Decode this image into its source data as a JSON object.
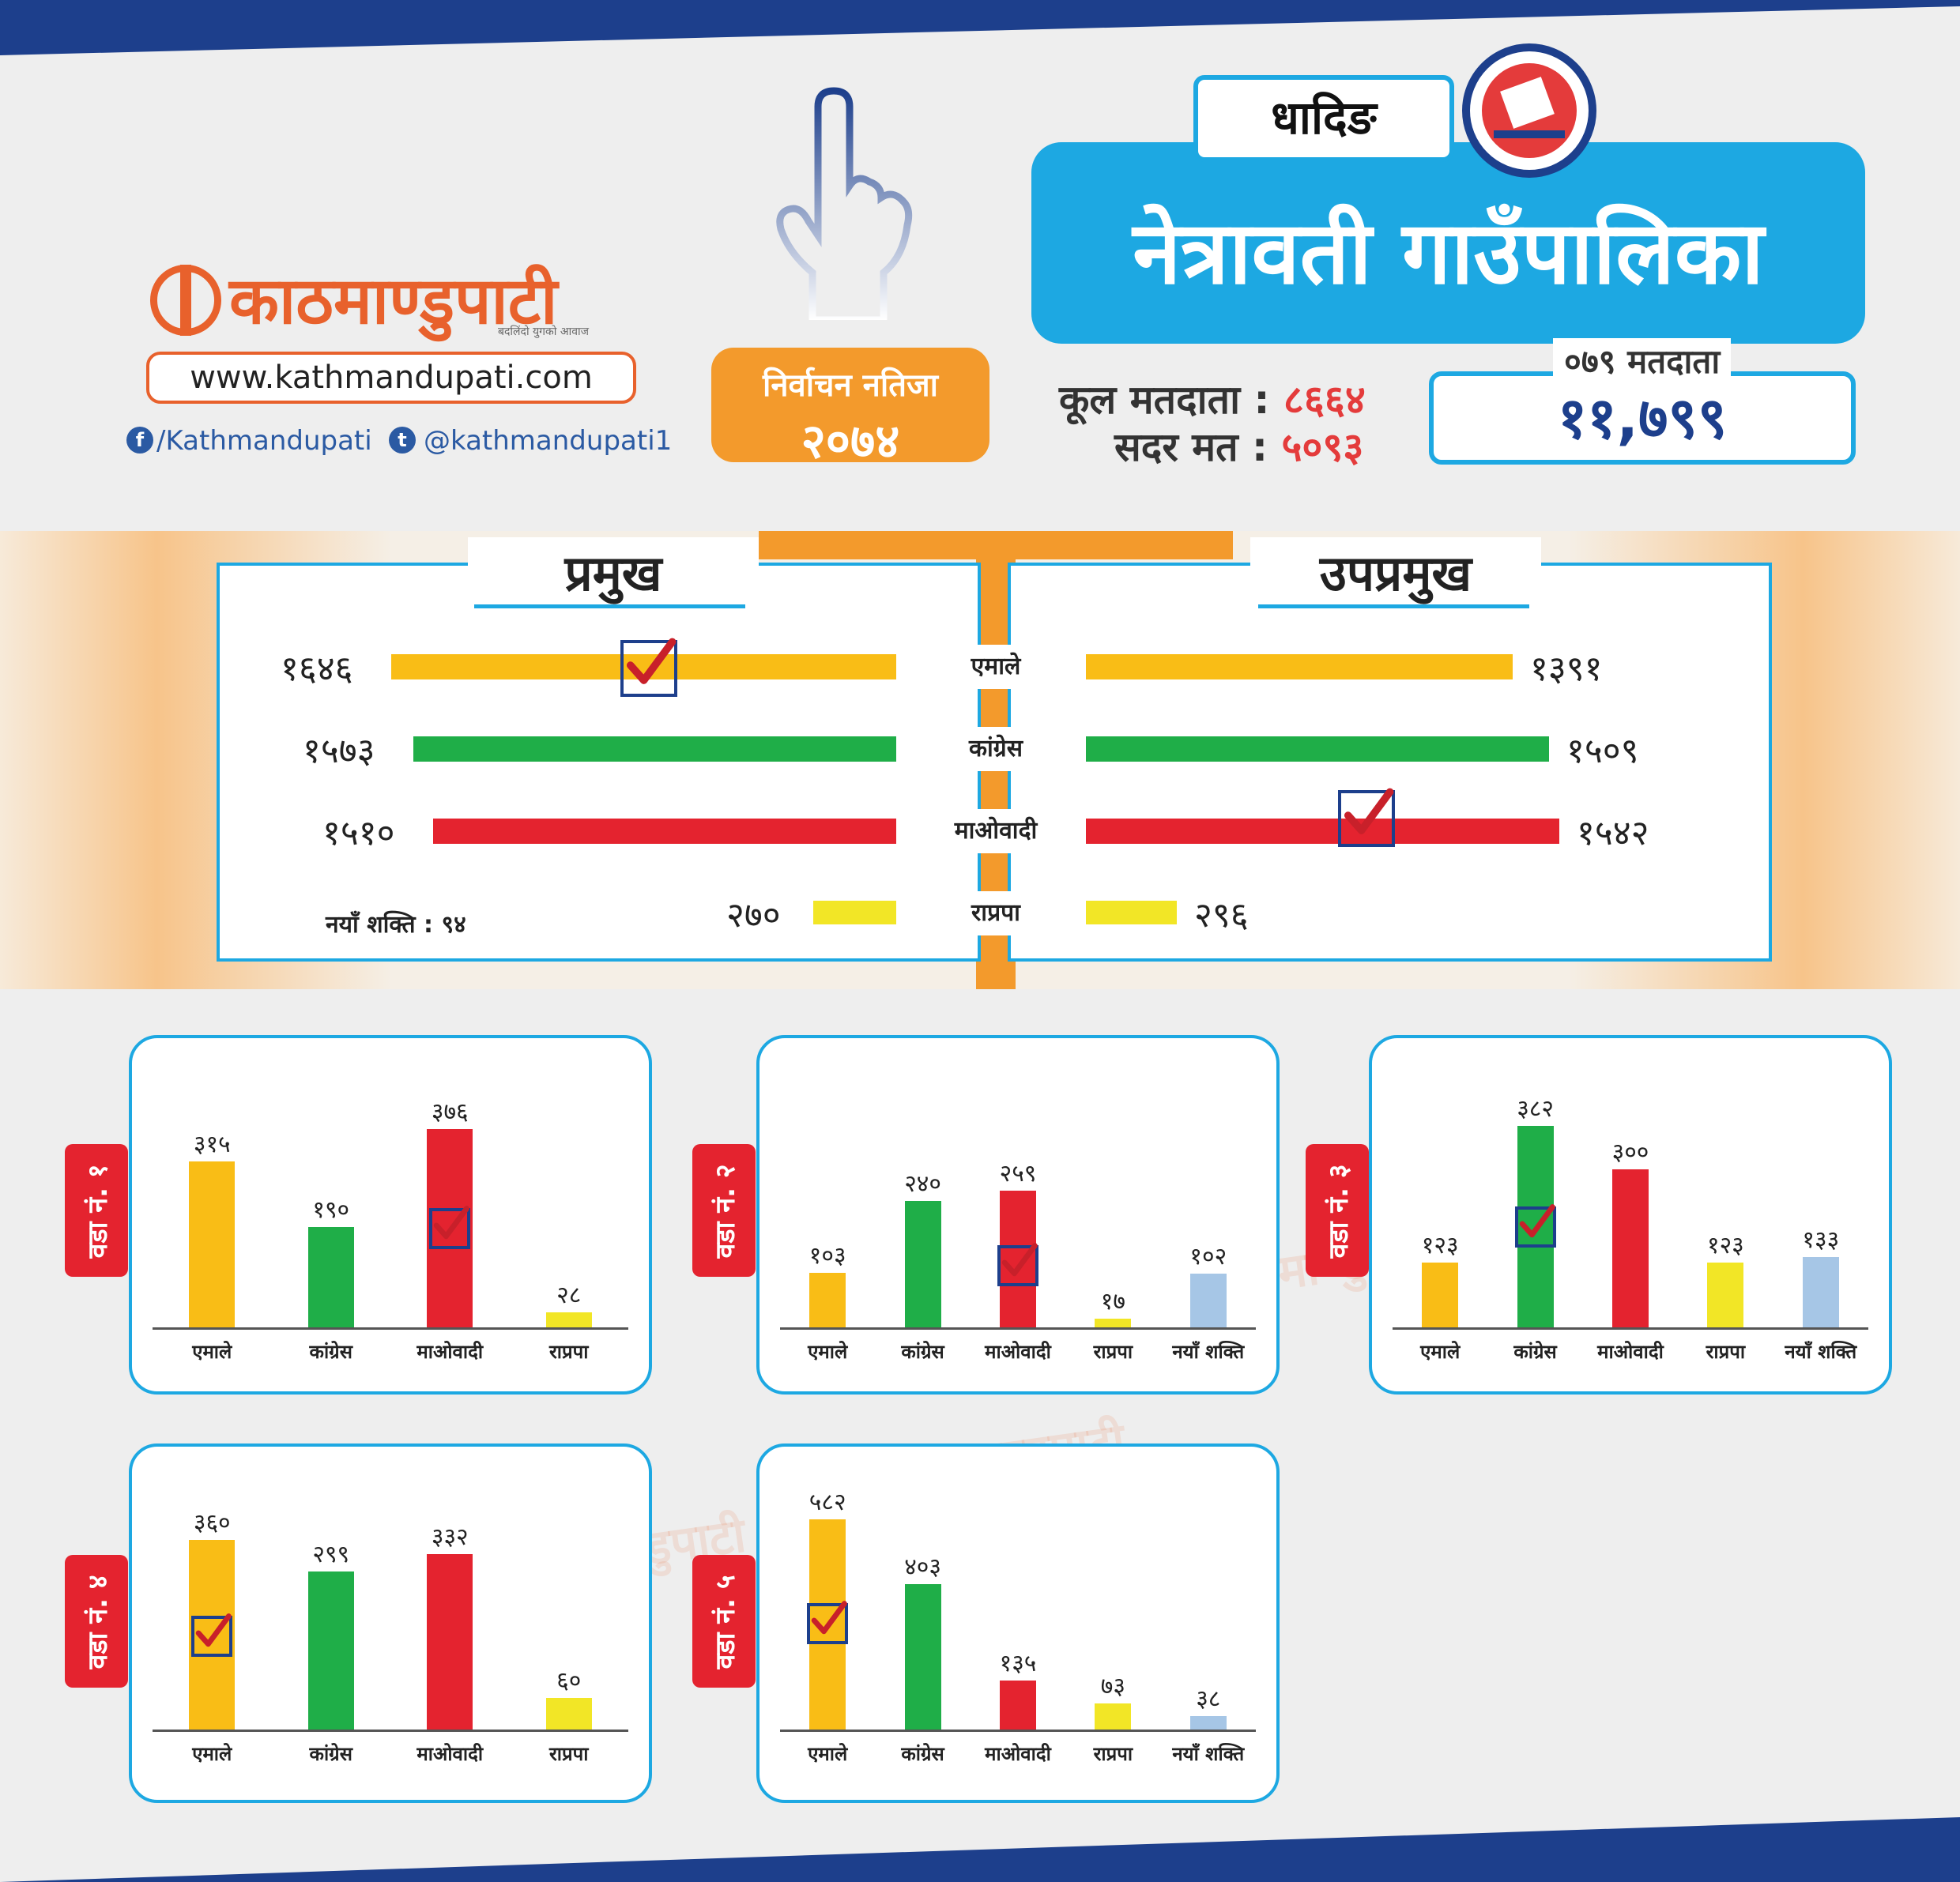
{
  "header": {
    "brand": "काठमाण्डुपाटी",
    "brand_tagline": "बदलिंदो युगको आवाज",
    "website": "www.kathmandupati.com",
    "facebook": "/Kathmandupati",
    "twitter": "@kathmandupati1",
    "result_title": "निर्वाचन नतिजा",
    "result_year": "२०७४",
    "district": "धादिङ",
    "municipality": "नेत्रावती गाउँपालिका",
    "total_voters_label": "कूल मतदाता :",
    "total_voters": "८६६४",
    "valid_votes_label": "सदर मत :",
    "valid_votes": "५०९३",
    "voters_079_label": "०७९ मतदाता",
    "voters_079": "११,७९९"
  },
  "colors": {
    "emale": "#f9bd16",
    "congress": "#1fae48",
    "maoist": "#e4232f",
    "rpp": "#f2e626",
    "newpower": "#a6c6e6",
    "accent_blue": "#1da8e2",
    "accent_orange": "#f39a2c",
    "check_box": "#1d3f8c",
    "check_mark": "#c8202a"
  },
  "leaders": {
    "chief_title": "प्रमुख",
    "deputy_title": "उपप्रमुख",
    "parties": [
      "एमाले",
      "कांग्रेस",
      "माओवादी",
      "राप्रपा"
    ],
    "chief_values": [
      1646,
      1573,
      1510,
      270
    ],
    "chief_labels": [
      "१६४६",
      "१५७३",
      "१५१०",
      "२७०"
    ],
    "deputy_values": [
      1391,
      1509,
      1542,
      296
    ],
    "deputy_labels": [
      "१३९१",
      "१५०९",
      "१५४२",
      "२९६"
    ],
    "chief_winner": "एमाले",
    "deputy_winner": "माओवादी",
    "new_power_note": "नयाँ शक्ति : ९४"
  },
  "chart_data": [
    {
      "type": "bar",
      "ward_label": "वडा नं. १",
      "categories": [
        "एमाले",
        "कांग्रेस",
        "माओवादी",
        "राप्रपा"
      ],
      "values": [
        315,
        190,
        376,
        28
      ],
      "value_labels": [
        "३१५",
        "१९०",
        "३७६",
        "२८"
      ],
      "winner": "माओवादी"
    },
    {
      "type": "bar",
      "ward_label": "वडा नं. २",
      "categories": [
        "एमाले",
        "कांग्रेस",
        "माओवादी",
        "राप्रपा",
        "नयाँ शक्ति"
      ],
      "values": [
        103,
        240,
        259,
        17,
        102
      ],
      "value_labels": [
        "१०३",
        "२४०",
        "२५९",
        "१७",
        "१०२"
      ],
      "winner": "माओवादी"
    },
    {
      "type": "bar",
      "ward_label": "वडा नं. ३",
      "categories": [
        "एमाले",
        "कांग्रेस",
        "माओवादी",
        "राप्रपा",
        "नयाँ शक्ति"
      ],
      "values": [
        123,
        382,
        300,
        123,
        133
      ],
      "value_labels": [
        "१२३",
        "३८२",
        "३००",
        "१२३",
        "१३३"
      ],
      "winner": "कांग्रेस"
    },
    {
      "type": "bar",
      "ward_label": "वडा नं. ४",
      "categories": [
        "एमाले",
        "कांग्रेस",
        "माओवादी",
        "राप्रपा"
      ],
      "values": [
        360,
        299,
        332,
        60
      ],
      "value_labels": [
        "३६०",
        "२९९",
        "३३२",
        "६०"
      ],
      "winner": "एमाले"
    },
    {
      "type": "bar",
      "ward_label": "वडा नं. ५",
      "categories": [
        "एमाले",
        "कांग्रेस",
        "माओवादी",
        "राप्रपा",
        "नयाँ शक्ति"
      ],
      "values": [
        582,
        403,
        135,
        73,
        38
      ],
      "value_labels": [
        "५८२",
        "४०३",
        "१३५",
        "७३",
        "३८"
      ],
      "winner": "एमाले"
    }
  ]
}
